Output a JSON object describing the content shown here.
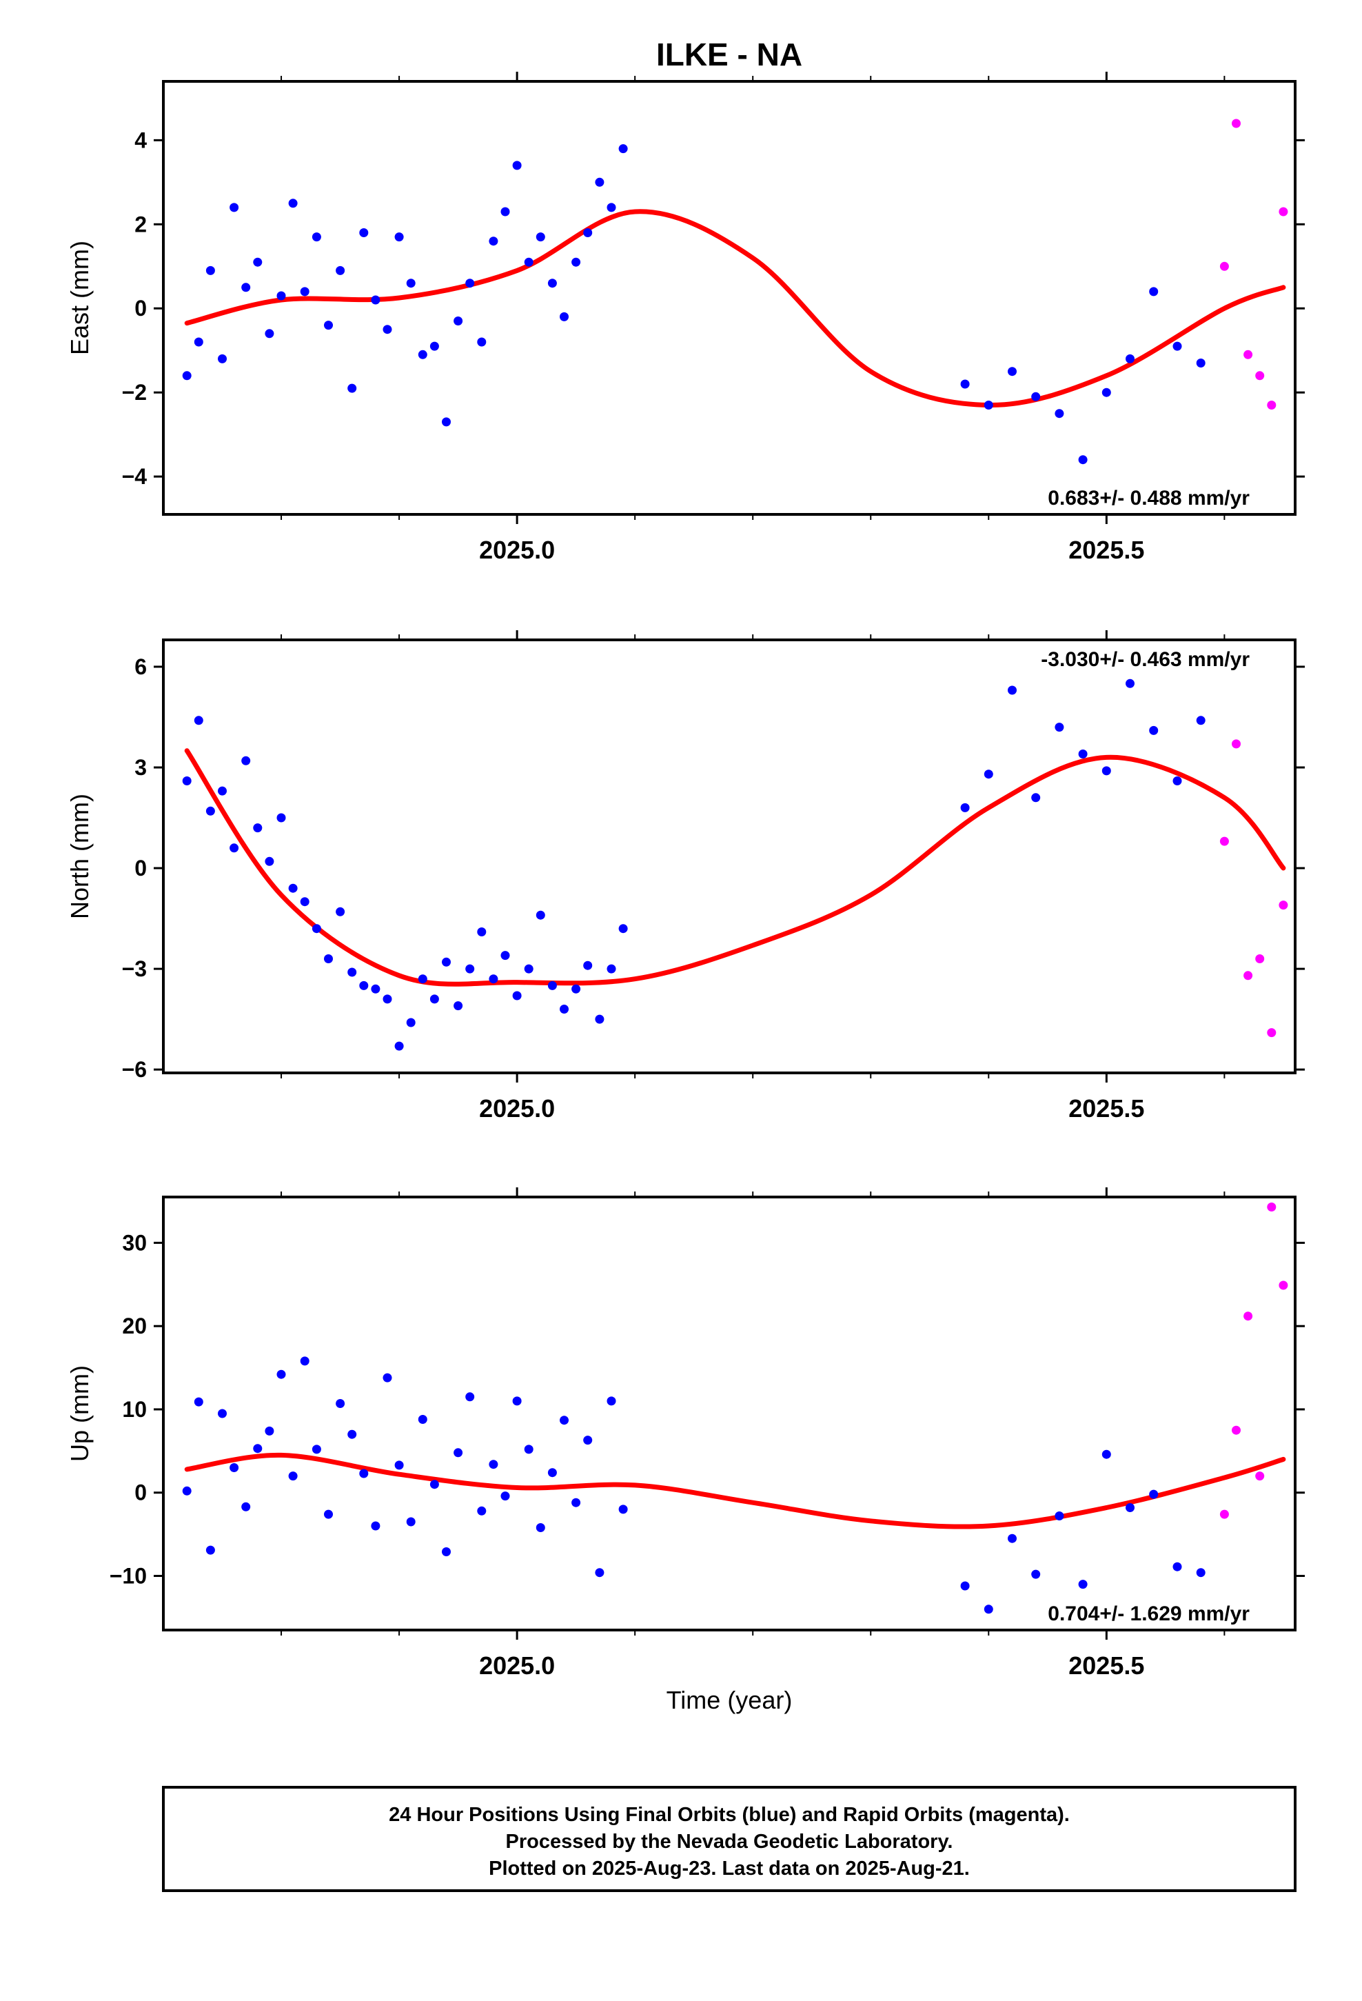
{
  "chart_data": [
    {
      "type": "scatter",
      "title": "ILKE - NA",
      "ylabel": "East (mm)",
      "xlabel": "",
      "xlim": [
        2024.7,
        2025.66
      ],
      "ylim": [
        -4.9,
        5.4
      ],
      "yticks": [
        -4,
        -2,
        0,
        2,
        4
      ],
      "ytick_labels": [
        "−4",
        "−2",
        "0",
        "2",
        "4"
      ],
      "xticks": [
        2025.0,
        2025.5
      ],
      "xtick_labels": [
        "2025.0",
        "2025.5"
      ],
      "xminor": [
        2024.8,
        2024.9,
        2025.1,
        2025.2,
        2025.3,
        2025.4,
        2025.6
      ],
      "rate_label": "0.683+/- 0.488 mm/yr",
      "rate_position": "bottom-right",
      "series": [
        {
          "color": "#0000ff",
          "x": [
            2024.72,
            2024.73,
            2024.74,
            2024.75,
            2024.76,
            2024.77,
            2024.78,
            2024.79,
            2024.8,
            2024.81,
            2024.82,
            2024.83,
            2024.84,
            2024.85,
            2024.86,
            2024.87,
            2024.88,
            2024.89,
            2024.9,
            2024.91,
            2024.92,
            2024.93,
            2024.94,
            2024.95,
            2024.96,
            2024.97,
            2024.98,
            2024.99,
            2025.0,
            2025.01,
            2025.02,
            2025.03,
            2025.04,
            2025.05,
            2025.06,
            2025.07,
            2025.08,
            2025.09,
            2025.38,
            2025.4,
            2025.42,
            2025.44,
            2025.46,
            2025.48,
            2025.5,
            2025.52,
            2025.54,
            2025.56,
            2025.58
          ],
          "y": [
            -1.6,
            -0.8,
            0.9,
            -1.2,
            2.4,
            0.5,
            1.1,
            -0.6,
            0.3,
            2.5,
            0.4,
            1.7,
            -0.4,
            0.9,
            -1.9,
            1.8,
            0.2,
            -0.5,
            1.7,
            0.6,
            -1.1,
            -0.9,
            -2.7,
            -0.3,
            0.6,
            -0.8,
            1.6,
            2.3,
            3.4,
            1.1,
            1.7,
            0.6,
            -0.2,
            1.1,
            1.8,
            3.0,
            2.4,
            3.8,
            -1.8,
            -2.3,
            -1.5,
            -2.1,
            -2.5,
            -3.6,
            -2.0,
            -1.2,
            0.4,
            -0.9,
            -1.3
          ]
        },
        {
          "color": "#ff00ff",
          "x": [
            2025.6,
            2025.61,
            2025.62,
            2025.63,
            2025.64,
            2025.65
          ],
          "y": [
            1.0,
            4.4,
            -1.1,
            -1.6,
            -2.3,
            2.3
          ]
        }
      ],
      "fit_curve": {
        "color": "#ff0000",
        "x": [
          2024.72,
          2024.8,
          2024.9,
          2025.0,
          2025.1,
          2025.2,
          2025.3,
          2025.4,
          2025.5,
          2025.6,
          2025.65
        ],
        "y": [
          -0.35,
          0.2,
          0.25,
          0.9,
          2.3,
          1.2,
          -1.5,
          -2.3,
          -1.6,
          0.0,
          0.5
        ]
      }
    },
    {
      "type": "scatter",
      "ylabel": "North (mm)",
      "xlabel": "",
      "xlim": [
        2024.7,
        2025.66
      ],
      "ylim": [
        -6.1,
        6.8
      ],
      "yticks": [
        -6,
        -3,
        0,
        3,
        6
      ],
      "ytick_labels": [
        "−6",
        "−3",
        "0",
        "3",
        "6"
      ],
      "xticks": [
        2025.0,
        2025.5
      ],
      "xtick_labels": [
        "2025.0",
        "2025.5"
      ],
      "xminor": [
        2024.8,
        2024.9,
        2025.1,
        2025.2,
        2025.3,
        2025.4,
        2025.6
      ],
      "rate_label": "-3.030+/- 0.463 mm/yr",
      "rate_position": "top-right",
      "series": [
        {
          "color": "#0000ff",
          "x": [
            2024.72,
            2024.73,
            2024.74,
            2024.75,
            2024.76,
            2024.77,
            2024.78,
            2024.79,
            2024.8,
            2024.81,
            2024.82,
            2024.83,
            2024.84,
            2024.85,
            2024.86,
            2024.87,
            2024.88,
            2024.89,
            2024.9,
            2024.91,
            2024.92,
            2024.93,
            2024.94,
            2024.95,
            2024.96,
            2024.97,
            2024.98,
            2024.99,
            2025.0,
            2025.01,
            2025.02,
            2025.03,
            2025.04,
            2025.05,
            2025.06,
            2025.07,
            2025.08,
            2025.09,
            2025.38,
            2025.4,
            2025.42,
            2025.44,
            2025.46,
            2025.48,
            2025.5,
            2025.52,
            2025.54,
            2025.56,
            2025.58
          ],
          "y": [
            2.6,
            4.4,
            1.7,
            2.3,
            0.6,
            3.2,
            1.2,
            0.2,
            1.5,
            -0.6,
            -1.0,
            -1.8,
            -2.7,
            -1.3,
            -3.1,
            -3.5,
            -3.6,
            -3.9,
            -5.3,
            -4.6,
            -3.3,
            -3.9,
            -2.8,
            -4.1,
            -3.0,
            -1.9,
            -3.3,
            -2.6,
            -3.8,
            -3.0,
            -1.4,
            -3.5,
            -4.2,
            -3.6,
            -2.9,
            -4.5,
            -3.0,
            -1.8,
            1.8,
            2.8,
            5.3,
            2.1,
            4.2,
            3.4,
            2.9,
            5.5,
            4.1,
            2.6,
            4.4
          ]
        },
        {
          "color": "#ff00ff",
          "x": [
            2025.6,
            2025.61,
            2025.62,
            2025.63,
            2025.64,
            2025.65
          ],
          "y": [
            0.8,
            3.7,
            -3.2,
            -2.7,
            -4.9,
            -1.1
          ]
        }
      ],
      "fit_curve": {
        "color": "#ff0000",
        "x": [
          2024.72,
          2024.8,
          2024.9,
          2025.0,
          2025.1,
          2025.2,
          2025.3,
          2025.4,
          2025.5,
          2025.6,
          2025.65
        ],
        "y": [
          3.5,
          -0.8,
          -3.2,
          -3.4,
          -3.3,
          -2.3,
          -0.8,
          1.8,
          3.3,
          2.1,
          0.0
        ]
      }
    },
    {
      "type": "scatter",
      "ylabel": "Up (mm)",
      "xlabel": "Time (year)",
      "xlim": [
        2024.7,
        2025.66
      ],
      "ylim": [
        -16.5,
        35.5
      ],
      "yticks": [
        -10,
        0,
        10,
        20,
        30
      ],
      "ytick_labels": [
        "−10",
        "0",
        "10",
        "20",
        "30"
      ],
      "xticks": [
        2025.0,
        2025.5
      ],
      "xtick_labels": [
        "2025.0",
        "2025.5"
      ],
      "xminor": [
        2024.8,
        2024.9,
        2025.1,
        2025.2,
        2025.3,
        2025.4,
        2025.6
      ],
      "rate_label": "0.704+/- 1.629 mm/yr",
      "rate_position": "bottom-right",
      "series": [
        {
          "color": "#0000ff",
          "x": [
            2024.72,
            2024.73,
            2024.74,
            2024.75,
            2024.76,
            2024.77,
            2024.78,
            2024.79,
            2024.8,
            2024.81,
            2024.82,
            2024.83,
            2024.84,
            2024.85,
            2024.86,
            2024.87,
            2024.88,
            2024.89,
            2024.9,
            2024.91,
            2024.92,
            2024.93,
            2024.94,
            2024.95,
            2024.96,
            2024.97,
            2024.98,
            2024.99,
            2025.0,
            2025.01,
            2025.02,
            2025.03,
            2025.04,
            2025.05,
            2025.06,
            2025.07,
            2025.08,
            2025.09,
            2025.38,
            2025.4,
            2025.42,
            2025.44,
            2025.46,
            2025.48,
            2025.5,
            2025.52,
            2025.54,
            2025.56,
            2025.58
          ],
          "y": [
            0.2,
            10.9,
            -6.9,
            9.5,
            3.0,
            -1.7,
            5.3,
            7.4,
            14.2,
            2.0,
            15.8,
            5.2,
            -2.6,
            10.7,
            7.0,
            2.3,
            -4.0,
            13.8,
            3.3,
            -3.5,
            8.8,
            1.0,
            -7.1,
            4.8,
            11.5,
            -2.2,
            3.4,
            -0.4,
            11.0,
            5.2,
            -4.2,
            2.4,
            8.7,
            -1.2,
            6.3,
            -9.6,
            11.0,
            -2.0,
            -11.2,
            -14.0,
            -5.5,
            -9.8,
            -2.8,
            -11.0,
            4.6,
            -1.8,
            -0.2,
            -8.9,
            -9.6
          ]
        },
        {
          "color": "#ff00ff",
          "x": [
            2025.6,
            2025.61,
            2025.62,
            2025.63,
            2025.64,
            2025.65
          ],
          "y": [
            -2.6,
            7.5,
            21.2,
            2.0,
            34.3,
            24.9
          ]
        }
      ],
      "fit_curve": {
        "color": "#ff0000",
        "x": [
          2024.72,
          2024.8,
          2024.9,
          2025.0,
          2025.1,
          2025.2,
          2025.3,
          2025.4,
          2025.5,
          2025.6,
          2025.65
        ],
        "y": [
          2.8,
          4.5,
          2.2,
          0.6,
          0.9,
          -1.2,
          -3.4,
          -4.0,
          -1.8,
          1.8,
          4.0
        ]
      }
    }
  ],
  "footer": {
    "line1": "24 Hour Positions Using Final Orbits (blue) and Rapid Orbits (magenta).",
    "line2": "Processed by the Nevada Geodetic Laboratory.",
    "line3": "Plotted on 2025-Aug-23. Last data on 2025-Aug-21."
  }
}
